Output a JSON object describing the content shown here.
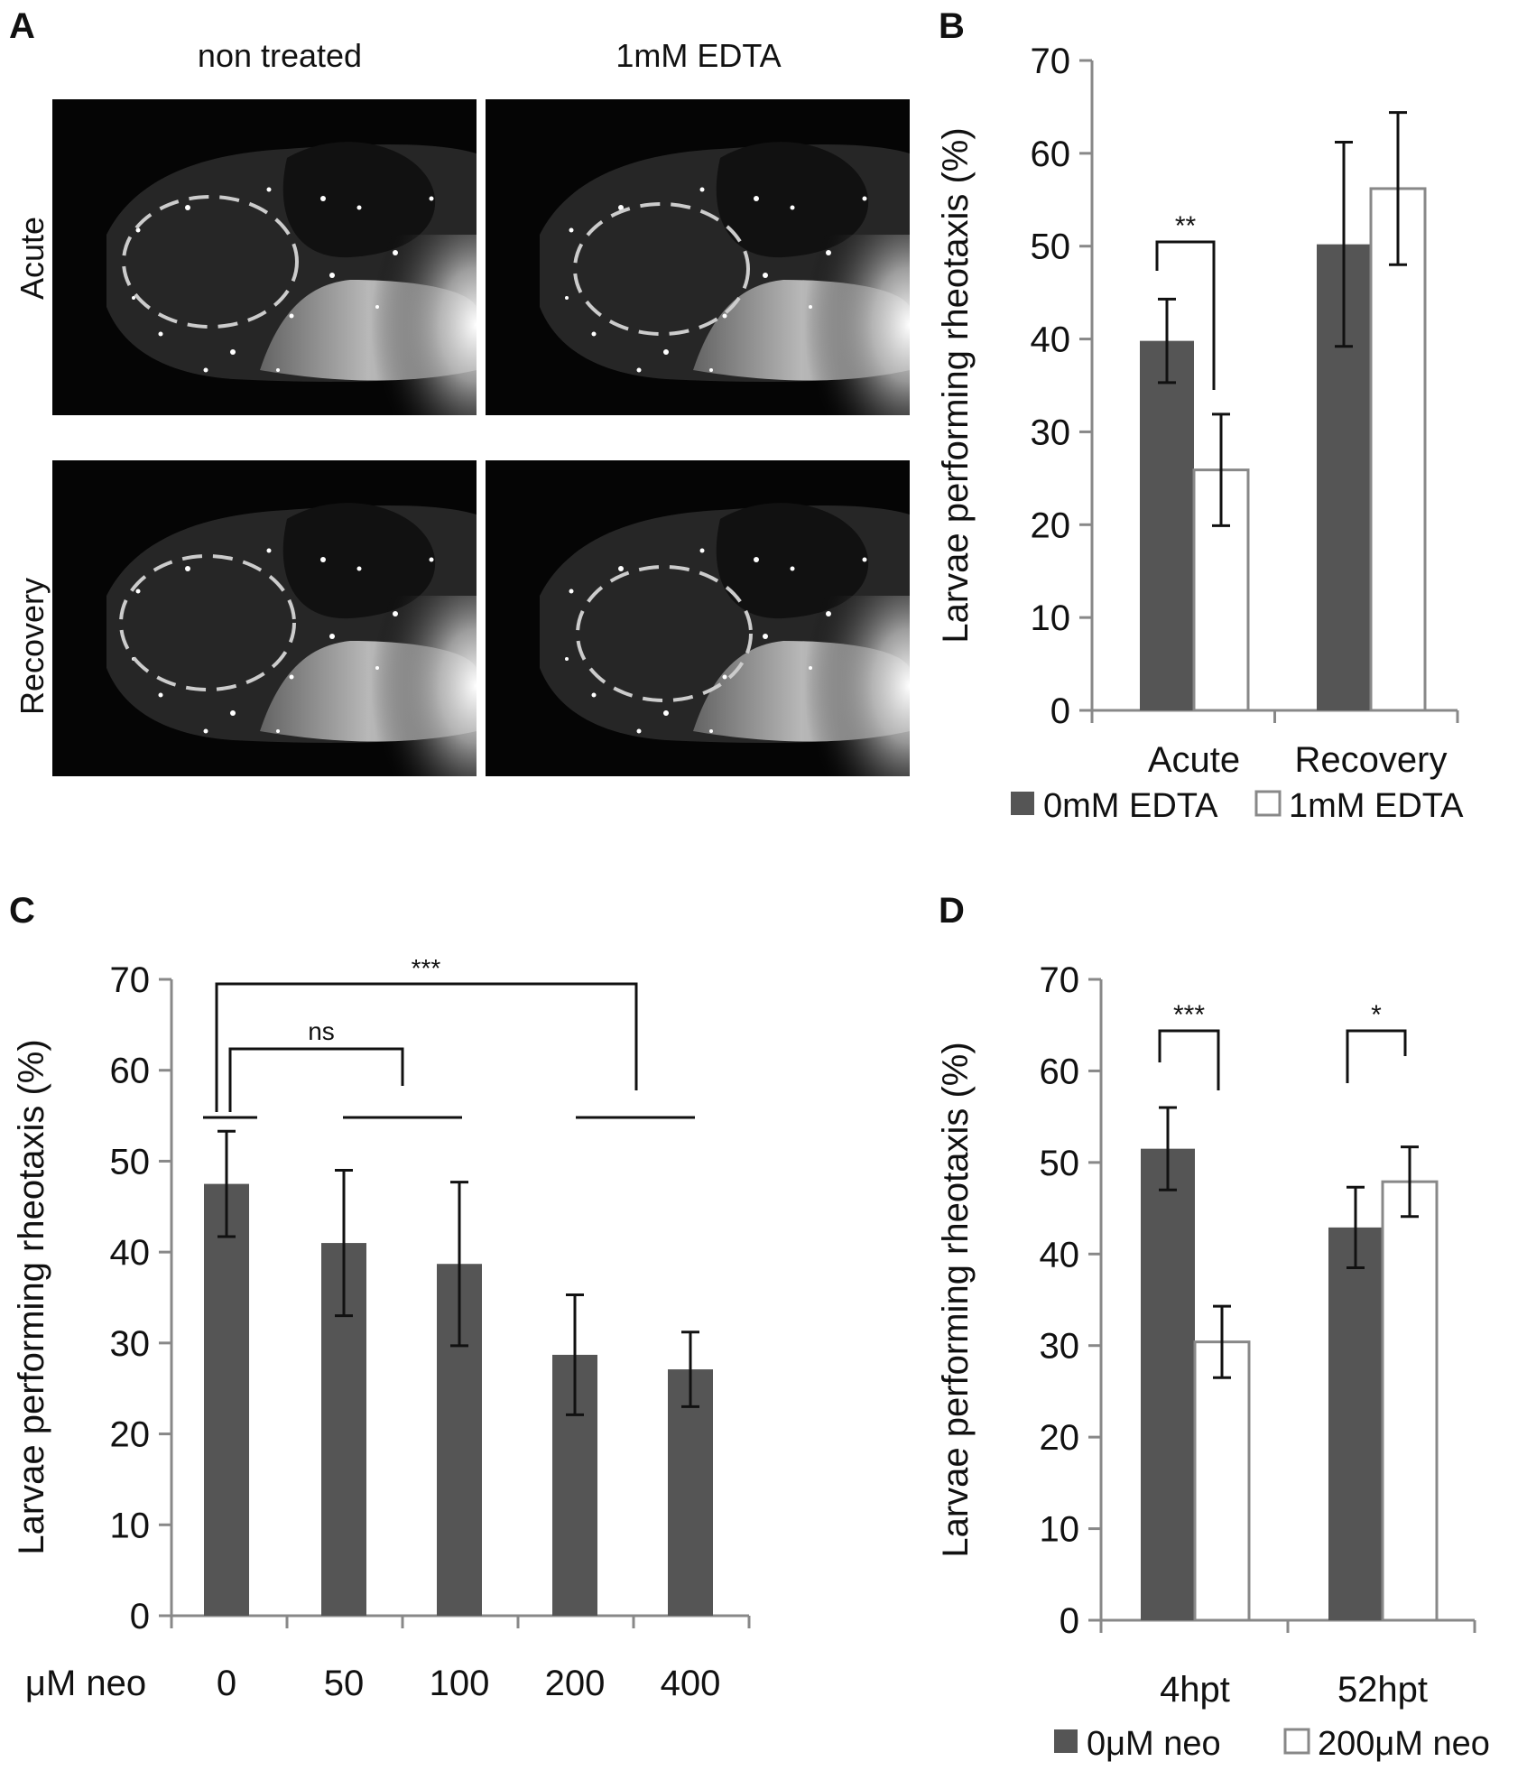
{
  "panels": {
    "A": {
      "label": "A",
      "columns": [
        "non treated",
        "1mM EDTA"
      ],
      "rows": [
        "Acute",
        "Recovery"
      ]
    },
    "B": {
      "label": "B"
    },
    "C": {
      "label": "C"
    },
    "D": {
      "label": "D"
    }
  },
  "colors": {
    "dark_bar": "#555555",
    "open_bar": "#ffffff",
    "axis": "#888888"
  },
  "chart_data": [
    {
      "panel": "B",
      "type": "bar",
      "ylabel": "Larvae performing rheotaxis (%)",
      "ylim": [
        0,
        70
      ],
      "yticks": [
        0,
        10,
        20,
        30,
        40,
        50,
        60,
        70
      ],
      "categories": [
        "Acute",
        "Recovery"
      ],
      "series": [
        {
          "name": "0mM EDTA",
          "color": "#555555",
          "values": [
            39.8,
            50.2
          ],
          "errors": [
            4.5,
            11.0
          ]
        },
        {
          "name": "1mM EDTA",
          "color": "#ffffff",
          "values": [
            25.9,
            56.2
          ],
          "errors": [
            6.0,
            8.2
          ]
        }
      ],
      "significance": [
        {
          "category": "Acute",
          "label": "**"
        }
      ],
      "legend": "bottom"
    },
    {
      "panel": "C",
      "type": "bar",
      "ylabel": "Larvae performing rheotaxis (%)",
      "xlabel": "μM neo",
      "ylim": [
        0,
        70
      ],
      "yticks": [
        0,
        10,
        20,
        30,
        40,
        50,
        60,
        70
      ],
      "categories": [
        "0",
        "50",
        "100",
        "200",
        "400"
      ],
      "series": [
        {
          "color": "#555555",
          "values": [
            47.5,
            41.0,
            38.7,
            28.7,
            27.1
          ],
          "errors": [
            5.8,
            8.0,
            9.0,
            6.6,
            4.1
          ]
        }
      ],
      "significance": [
        {
          "label": "ns",
          "from": "0",
          "to": "50–100"
        },
        {
          "label": "***",
          "from": "0",
          "to": "200–400"
        }
      ]
    },
    {
      "panel": "D",
      "type": "bar",
      "ylabel": "Larvae performing rheotaxis (%)",
      "ylim": [
        0,
        70
      ],
      "yticks": [
        0,
        10,
        20,
        30,
        40,
        50,
        60,
        70
      ],
      "categories": [
        "4hpt",
        "52hpt"
      ],
      "series": [
        {
          "name": "0μM neo",
          "color": "#555555",
          "values": [
            51.5,
            42.9
          ],
          "errors": [
            4.5,
            4.4
          ]
        },
        {
          "name": "200μM neo",
          "color": "#ffffff",
          "values": [
            30.4,
            47.9
          ],
          "errors": [
            3.9,
            3.8
          ]
        }
      ],
      "significance": [
        {
          "category": "4hpt",
          "label": "***"
        },
        {
          "category": "52hpt",
          "label": "*"
        }
      ],
      "legend": "bottom"
    }
  ]
}
